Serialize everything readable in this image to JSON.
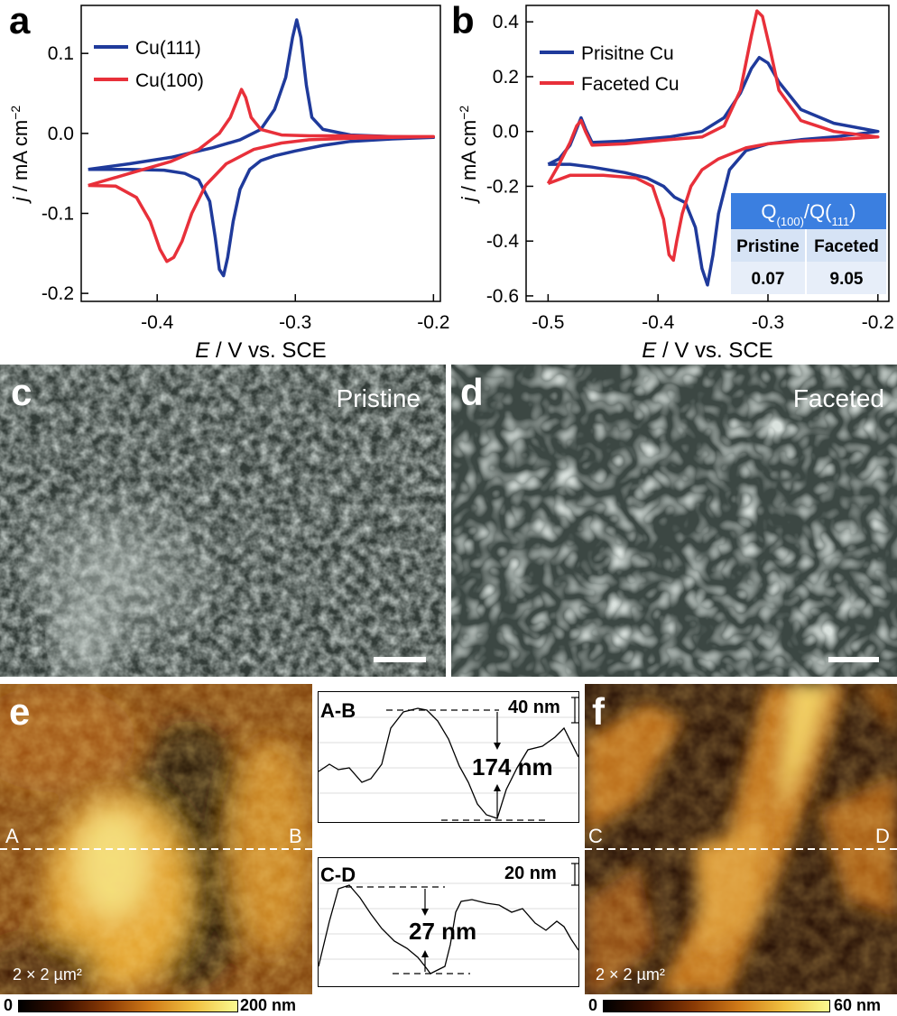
{
  "panels": {
    "a": "a",
    "b": "b",
    "c": "c",
    "d": "d",
    "e": "e",
    "f": "f"
  },
  "chart_data": [
    {
      "type": "line",
      "panel": "a",
      "xlabel_italic": "E",
      "xlabel_rest": " / V vs. SCE",
      "ylabel_italic": "j",
      "ylabel_rest": " / mA cm",
      "ylabel_sup": "−2",
      "xlim": [
        -0.455,
        -0.195
      ],
      "ylim": [
        -0.21,
        0.16
      ],
      "xticks": [
        -0.4,
        -0.3,
        -0.2
      ],
      "xtick_labels": [
        "-0.4",
        "-0.3",
        "-0.2"
      ],
      "yticks": [
        -0.2,
        -0.1,
        0.0,
        0.1
      ],
      "ytick_labels": [
        "-0.2",
        "-0.1",
        "0.0",
        "0.1"
      ],
      "legend_position": "top-left",
      "series": [
        {
          "name": "Cu(111)",
          "color": "#1f3a9b",
          "x": [
            -0.45,
            -0.42,
            -0.39,
            -0.36,
            -0.34,
            -0.325,
            -0.315,
            -0.307,
            -0.302,
            -0.299,
            -0.296,
            -0.292,
            -0.288,
            -0.28,
            -0.26,
            -0.23,
            -0.2,
            -0.23,
            -0.26,
            -0.28,
            -0.3,
            -0.315,
            -0.325,
            -0.333,
            -0.34,
            -0.345,
            -0.349,
            -0.352,
            -0.355,
            -0.358,
            -0.362,
            -0.37,
            -0.38,
            -0.395,
            -0.42,
            -0.45
          ],
          "y": [
            -0.045,
            -0.038,
            -0.03,
            -0.018,
            -0.008,
            0.005,
            0.03,
            0.07,
            0.12,
            0.142,
            0.12,
            0.06,
            0.02,
            0.005,
            -0.002,
            -0.004,
            -0.005,
            -0.007,
            -0.01,
            -0.015,
            -0.022,
            -0.028,
            -0.034,
            -0.045,
            -0.07,
            -0.11,
            -0.155,
            -0.178,
            -0.17,
            -0.13,
            -0.085,
            -0.058,
            -0.05,
            -0.046,
            -0.045,
            -0.045
          ]
        },
        {
          "name": "Cu(100)",
          "color": "#e8303a",
          "x": [
            -0.45,
            -0.42,
            -0.39,
            -0.37,
            -0.355,
            -0.347,
            -0.342,
            -0.339,
            -0.336,
            -0.332,
            -0.325,
            -0.31,
            -0.29,
            -0.26,
            -0.23,
            -0.2,
            -0.23,
            -0.26,
            -0.29,
            -0.31,
            -0.33,
            -0.35,
            -0.365,
            -0.375,
            -0.382,
            -0.388,
            -0.393,
            -0.398,
            -0.405,
            -0.415,
            -0.43,
            -0.45
          ],
          "y": [
            -0.065,
            -0.05,
            -0.035,
            -0.02,
            0.0,
            0.02,
            0.042,
            0.055,
            0.045,
            0.02,
            0.005,
            -0.002,
            -0.003,
            -0.003,
            -0.004,
            -0.004,
            -0.005,
            -0.006,
            -0.008,
            -0.012,
            -0.02,
            -0.038,
            -0.065,
            -0.1,
            -0.135,
            -0.155,
            -0.16,
            -0.145,
            -0.11,
            -0.08,
            -0.066,
            -0.065
          ]
        }
      ]
    },
    {
      "type": "line",
      "panel": "b",
      "xlabel_italic": "E",
      "xlabel_rest": " / V vs. SCE",
      "ylabel_italic": "j",
      "ylabel_rest": " / mA cm",
      "ylabel_sup": "−2",
      "xlim": [
        -0.52,
        -0.19
      ],
      "ylim": [
        -0.62,
        0.46
      ],
      "xticks": [
        -0.5,
        -0.4,
        -0.3,
        -0.2
      ],
      "xtick_labels": [
        "-0.5",
        "-0.4",
        "-0.3",
        "-0.2"
      ],
      "yticks": [
        -0.6,
        -0.4,
        -0.2,
        0.0,
        0.2,
        0.4
      ],
      "ytick_labels": [
        "-0.6",
        "-0.4",
        "-0.2",
        "0.0",
        "0.2",
        "0.4"
      ],
      "legend_position": "top-left",
      "series": [
        {
          "name": "Prisitne Cu",
          "color": "#1f3a9b",
          "x": [
            -0.5,
            -0.49,
            -0.48,
            -0.474,
            -0.47,
            -0.466,
            -0.46,
            -0.43,
            -0.39,
            -0.36,
            -0.34,
            -0.325,
            -0.315,
            -0.308,
            -0.3,
            -0.29,
            -0.27,
            -0.24,
            -0.2,
            -0.24,
            -0.27,
            -0.3,
            -0.32,
            -0.335,
            -0.345,
            -0.35,
            -0.355,
            -0.36,
            -0.366,
            -0.375,
            -0.385,
            -0.395,
            -0.41,
            -0.43,
            -0.46,
            -0.48,
            -0.5
          ],
          "y": [
            -0.12,
            -0.1,
            -0.05,
            0.01,
            0.05,
            0.01,
            -0.04,
            -0.035,
            -0.02,
            0.0,
            0.05,
            0.14,
            0.23,
            0.27,
            0.25,
            0.18,
            0.08,
            0.03,
            0.0,
            -0.02,
            -0.03,
            -0.045,
            -0.07,
            -0.14,
            -0.3,
            -0.45,
            -0.56,
            -0.5,
            -0.35,
            -0.26,
            -0.24,
            -0.2,
            -0.17,
            -0.15,
            -0.13,
            -0.12,
            -0.12
          ]
        },
        {
          "name": "Faceted Cu",
          "color": "#e8303a",
          "x": [
            -0.5,
            -0.49,
            -0.48,
            -0.474,
            -0.47,
            -0.466,
            -0.46,
            -0.43,
            -0.39,
            -0.36,
            -0.34,
            -0.325,
            -0.315,
            -0.31,
            -0.305,
            -0.298,
            -0.29,
            -0.27,
            -0.24,
            -0.2,
            -0.24,
            -0.27,
            -0.3,
            -0.32,
            -0.345,
            -0.36,
            -0.37,
            -0.378,
            -0.383,
            -0.386,
            -0.39,
            -0.395,
            -0.405,
            -0.42,
            -0.45,
            -0.48,
            -0.5
          ],
          "y": [
            -0.19,
            -0.12,
            -0.04,
            0.02,
            0.04,
            0.0,
            -0.05,
            -0.045,
            -0.03,
            -0.02,
            0.02,
            0.15,
            0.35,
            0.44,
            0.42,
            0.3,
            0.15,
            0.04,
            0.0,
            -0.02,
            -0.03,
            -0.035,
            -0.045,
            -0.06,
            -0.1,
            -0.14,
            -0.2,
            -0.3,
            -0.4,
            -0.47,
            -0.45,
            -0.32,
            -0.2,
            -0.17,
            -0.16,
            -0.16,
            -0.19
          ]
        }
      ],
      "inset_table": {
        "header_main": "Q",
        "header_sub1": "(100)",
        "header_mid": "/Q(",
        "header_sub2": "111",
        "header_end": ")",
        "columns": [
          "Pristine",
          "Faceted"
        ],
        "values": [
          "0.07",
          "9.05"
        ]
      }
    }
  ],
  "sem": {
    "c_label": "Pristine",
    "d_label": "Faceted"
  },
  "afm": {
    "e_point_a": "A",
    "e_point_b": "B",
    "e_size": "2 × 2 µm²",
    "f_point_c": "C",
    "f_point_d": "D",
    "f_size": "2 × 2 µm²",
    "e_cbar_min": "0",
    "e_cbar_max": "200 nm",
    "f_cbar_min": "0",
    "f_cbar_max": "60 nm"
  },
  "profiles": {
    "ab_label": "A-B",
    "ab_scale": "40 nm",
    "ab_height": "174 nm",
    "cd_label": "C-D",
    "cd_scale": "20 nm",
    "cd_height": "27 nm"
  }
}
